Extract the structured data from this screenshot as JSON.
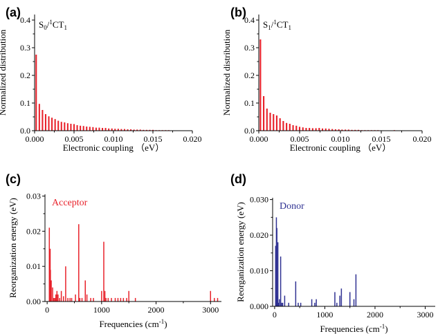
{
  "colors": {
    "red": "#e8212a",
    "blue": "#2f3192",
    "axis": "#000000"
  },
  "chart_data": [
    {
      "panel_label": "(a)",
      "type": "bar",
      "annotation_main": "S",
      "annotation_sub1": "0",
      "annotation_mid": "/",
      "annotation_sup": "1",
      "annotation_end": "CT",
      "annotation_sub2": "1",
      "xlabel": "Electronic coupling （eV）",
      "ylabel": "Normalized distribution",
      "xlim": [
        0,
        0.02
      ],
      "ylim": [
        0,
        0.42
      ],
      "xticks": [
        "0.000",
        "0.005",
        "0.010",
        "0.015",
        "0.020"
      ],
      "yticks": [
        "0.0",
        "0.1",
        "0.2",
        "0.3",
        "0.4"
      ],
      "bar_width": 0.00018,
      "x": [
        0.0002,
        0.0006,
        0.001,
        0.0014,
        0.0018,
        0.0022,
        0.0026,
        0.003,
        0.0034,
        0.0038,
        0.0042,
        0.0046,
        0.005,
        0.0054,
        0.0058,
        0.0062,
        0.0066,
        0.007,
        0.0074,
        0.0078,
        0.0082,
        0.0086,
        0.009,
        0.0094,
        0.0098,
        0.0102,
        0.0106,
        0.011,
        0.0114,
        0.0118,
        0.0122,
        0.0126,
        0.013,
        0.0134,
        0.0138,
        0.0142,
        0.0146,
        0.015,
        0.0154,
        0.0158,
        0.0162,
        0.0166,
        0.017,
        0.0174,
        0.0178
      ],
      "values": [
        0.275,
        0.097,
        0.075,
        0.06,
        0.052,
        0.047,
        0.042,
        0.036,
        0.032,
        0.03,
        0.027,
        0.025,
        0.024,
        0.02,
        0.018,
        0.017,
        0.015,
        0.014,
        0.013,
        0.011,
        0.011,
        0.01,
        0.01,
        0.008,
        0.008,
        0.007,
        0.007,
        0.006,
        0.006,
        0.005,
        0.005,
        0.004,
        0.004,
        0.004,
        0.003,
        0.003,
        0.003,
        0.003,
        0.002,
        0.002,
        0.002,
        0.002,
        0.002,
        0.001,
        0.001
      ]
    },
    {
      "panel_label": "(b)",
      "type": "bar",
      "annotation_main": "S",
      "annotation_sub1": "1",
      "annotation_mid": "/",
      "annotation_sup": "1",
      "annotation_end": "CT",
      "annotation_sub2": "1",
      "xlabel": "Electronic coupling （eV）",
      "ylabel": "Normalized distribution",
      "xlim": [
        0,
        0.02
      ],
      "ylim": [
        0,
        0.42
      ],
      "xticks": [
        "0.000",
        "0.005",
        "0.010",
        "0.015",
        "0.020"
      ],
      "yticks": [
        "0.0",
        "0.1",
        "0.2",
        "0.3",
        "0.4"
      ],
      "bar_width": 0.00018,
      "x": [
        0.0002,
        0.0006,
        0.001,
        0.0014,
        0.0018,
        0.0022,
        0.0026,
        0.003,
        0.0034,
        0.0038,
        0.0042,
        0.0046,
        0.005,
        0.0054,
        0.0058,
        0.0062,
        0.0066,
        0.007,
        0.0074,
        0.0078,
        0.0082,
        0.0086,
        0.009,
        0.0094,
        0.0098,
        0.0102,
        0.0106,
        0.011,
        0.0114,
        0.0118,
        0.0122,
        0.0126,
        0.013,
        0.0134,
        0.0138,
        0.0142,
        0.0146,
        0.015,
        0.0154,
        0.0158,
        0.0162,
        0.0166,
        0.017,
        0.0174,
        0.0178
      ],
      "values": [
        0.33,
        0.125,
        0.08,
        0.065,
        0.06,
        0.055,
        0.045,
        0.035,
        0.028,
        0.025,
        0.02,
        0.018,
        0.014,
        0.012,
        0.01,
        0.01,
        0.009,
        0.009,
        0.01,
        0.008,
        0.008,
        0.007,
        0.006,
        0.005,
        0.005,
        0.004,
        0.004,
        0.004,
        0.003,
        0.003,
        0.003,
        0.002,
        0.002,
        0.002,
        0.002,
        0.002,
        0.002,
        0.001,
        0.001,
        0.001,
        0.001,
        0.002,
        0.001,
        0.001,
        0.001
      ]
    },
    {
      "panel_label": "(c)",
      "type": "bar",
      "legend": "Acceptor",
      "xlabel_main": "Frequencies (cm",
      "xlabel_sup": "-1",
      "xlabel_end": ")",
      "ylabel": "Reorganization energy (eV)",
      "xlim": [
        -40,
        3200
      ],
      "ylim": [
        0,
        0.0305
      ],
      "xticks": [
        0,
        1000,
        2000,
        3000
      ],
      "yticks": [
        "0.00",
        "0.01",
        "0.02",
        "0.03"
      ],
      "x": [
        40,
        55,
        60,
        75,
        100,
        120,
        140,
        160,
        180,
        200,
        230,
        260,
        300,
        340,
        380,
        420,
        450,
        520,
        580,
        600,
        640,
        700,
        730,
        800,
        850,
        1000,
        1040,
        1060,
        1080,
        1120,
        1180,
        1250,
        1300,
        1350,
        1400,
        1460,
        1500,
        1620,
        3000,
        3070,
        3130
      ],
      "values": [
        0.021,
        0.015,
        0.009,
        0.006,
        0.004,
        0.001,
        0.001,
        0.002,
        0.003,
        0.002,
        0.001,
        0.003,
        0.0015,
        0.01,
        0.001,
        0.001,
        0.001,
        0.002,
        0.022,
        0.001,
        0.001,
        0.006,
        0.002,
        0.001,
        0.001,
        0.003,
        0.017,
        0.003,
        0.001,
        0.001,
        0.001,
        0.001,
        0.001,
        0.001,
        0.001,
        0.001,
        0.003,
        0.001,
        0.003,
        0.001,
        0.001
      ]
    },
    {
      "panel_label": "(d)",
      "type": "bar",
      "legend": "Donor",
      "xlabel_main": "Frequencies (cm",
      "xlabel_sup": "-1",
      "xlabel_end": ")",
      "ylabel": "Reorganization energy (eV)",
      "xlim": [
        -40,
        3200
      ],
      "ylim": [
        0,
        0.0305
      ],
      "xticks": [
        0,
        1000,
        2000,
        3000
      ],
      "yticks": [
        "0.000",
        "0.010",
        "0.020",
        "0.030"
      ],
      "x": [
        20,
        35,
        45,
        55,
        65,
        80,
        95,
        120,
        140,
        160,
        200,
        280,
        420,
        470,
        520,
        740,
        800,
        830,
        1200,
        1240,
        1300,
        1330,
        1500,
        1580,
        1620
      ],
      "values": [
        0.017,
        0.025,
        0.022,
        0.003,
        0.018,
        0.001,
        0.002,
        0.014,
        0.001,
        0.001,
        0.003,
        0.001,
        0.007,
        0.001,
        0.001,
        0.002,
        0.001,
        0.002,
        0.004,
        0.001,
        0.003,
        0.005,
        0.004,
        0.002,
        0.009
      ]
    }
  ]
}
